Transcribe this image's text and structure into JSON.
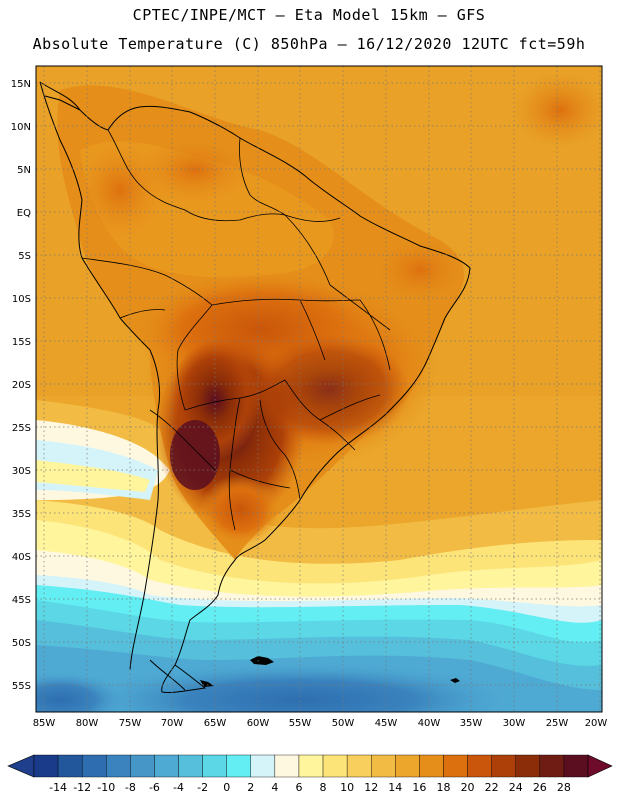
{
  "header": {
    "line1": "CPTEC/INPE/MCT –  Eta Model 15km – GFS",
    "line2": "Absolute Temperature (C) 850hPa – 16/12/2020 12UTC fct=59h"
  },
  "map": {
    "lat_labels": [
      "15N",
      "10N",
      "5N",
      "EQ",
      "5S",
      "10S",
      "15S",
      "20S",
      "25S",
      "30S",
      "35S",
      "40S",
      "45S",
      "50S",
      "55S"
    ],
    "lon_labels": [
      "85W",
      "80W",
      "75W",
      "70W",
      "65W",
      "60W",
      "55W",
      "50W",
      "45W",
      "40W",
      "35W",
      "30W",
      "25W",
      "20W"
    ]
  },
  "colorbar": {
    "labels": [
      "-14",
      "-12",
      "-10",
      "-8",
      "-6",
      "-4",
      "-2",
      "0",
      "2",
      "4",
      "6",
      "8",
      "10",
      "12",
      "14",
      "16",
      "18",
      "20",
      "22",
      "24",
      "26",
      "28"
    ],
    "colors": [
      "#1a3a8a",
      "#23579c",
      "#2e6eb0",
      "#3a83be",
      "#4696c8",
      "#4faad3",
      "#56c0dc",
      "#5bd7e6",
      "#62eef2",
      "#d4f4fa",
      "#fff8e0",
      "#fff59c",
      "#fde479",
      "#f8cf5d",
      "#f2bc44",
      "#eba62b",
      "#e58f1a",
      "#dd700e",
      "#c9560a",
      "#ac4008",
      "#8b2d08",
      "#6e1c14",
      "#5a0e20"
    ],
    "under_color": "#1f3f8c",
    "over_color": "#6e0a2a"
  }
}
